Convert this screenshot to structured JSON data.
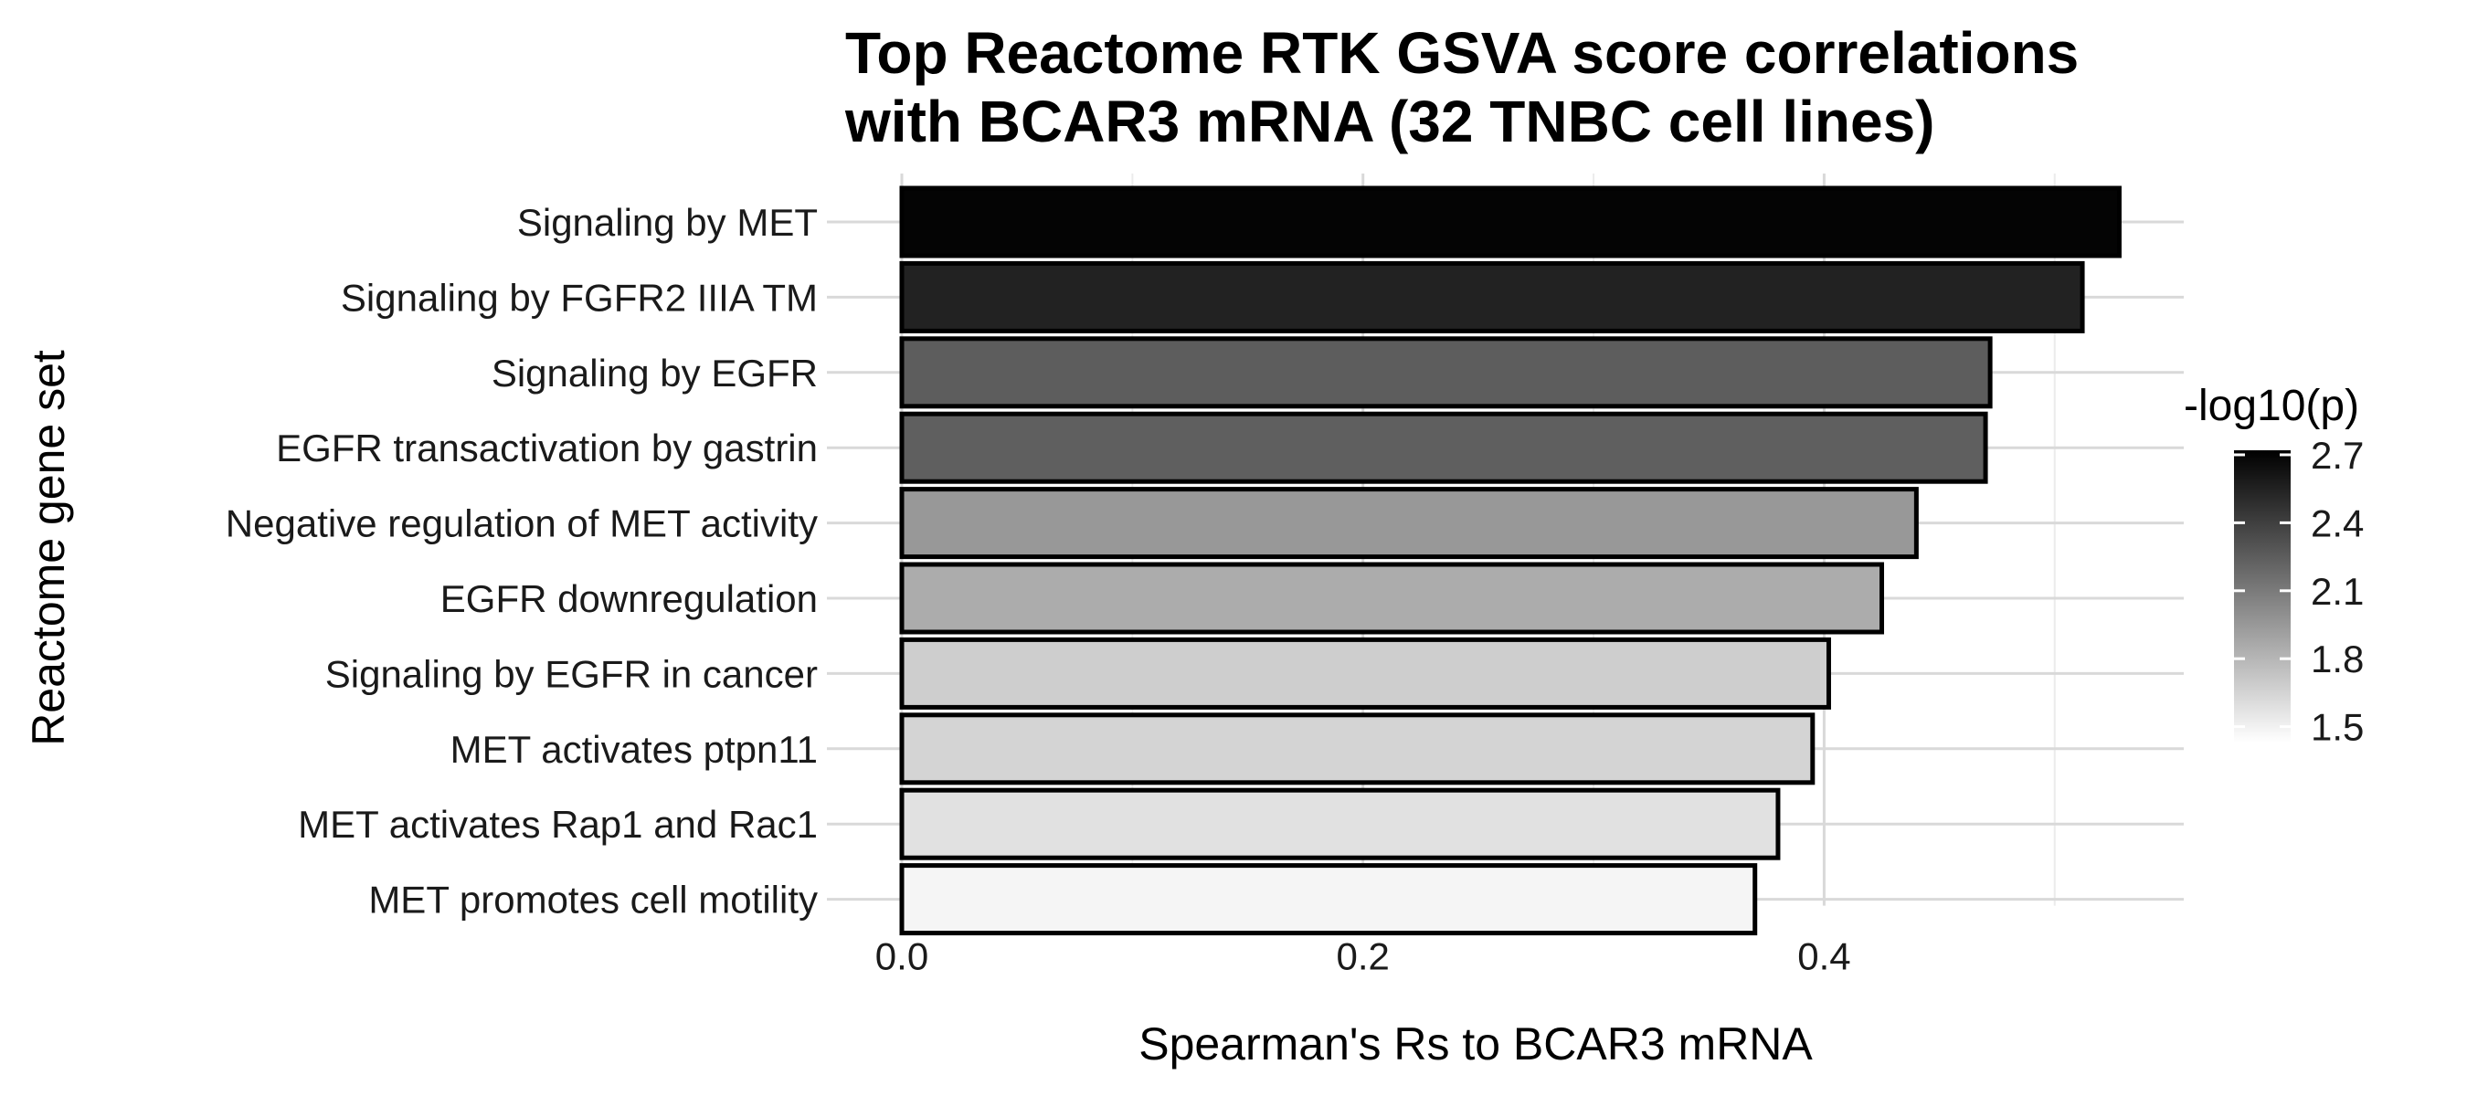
{
  "chart_data": {
    "type": "bar",
    "orientation": "horizontal",
    "title_lines": [
      "Top Reactome RTK GSVA score correlations",
      "with BCAR3 mRNA (32 TNBC cell lines)"
    ],
    "xlabel": "Spearman's Rs to BCAR3 mRNA",
    "ylabel": "Reactome gene set",
    "categories": [
      "Signaling by MET",
      "Signaling by FGFR2 IIIA TM",
      "Signaling by EGFR",
      "EGFR transactivation by gastrin",
      "Negative regulation of MET activity",
      "EGFR downregulation",
      "Signaling by EGFR in cancer",
      "MET activates ptpn11",
      "MET activates Rap1 and Rac1",
      "MET promotes cell motility"
    ],
    "values": [
      0.528,
      0.512,
      0.472,
      0.47,
      0.44,
      0.425,
      0.402,
      0.395,
      0.38,
      0.37
    ],
    "fill_values": [
      2.7,
      2.55,
      2.25,
      2.24,
      1.95,
      1.85,
      1.68,
      1.65,
      1.58,
      1.48
    ],
    "xlim": [
      0,
      0.552
    ],
    "xticks": [
      0.0,
      0.2,
      0.4
    ],
    "xtick_labels": [
      "0.0",
      "0.2",
      "0.4"
    ],
    "grid": true,
    "legend": {
      "title": "-log10(p)",
      "placement": "right",
      "range": [
        1.43,
        2.72
      ],
      "ticks": [
        2.7,
        2.4,
        2.1,
        1.8,
        1.5
      ],
      "tick_labels": [
        "2.7",
        "2.4",
        "2.1",
        "1.8",
        "1.5"
      ],
      "color_low": "#ffffff",
      "color_high": "#000000"
    },
    "bar_outline_color": "#000000",
    "grid_color": "#d9d9d9"
  }
}
